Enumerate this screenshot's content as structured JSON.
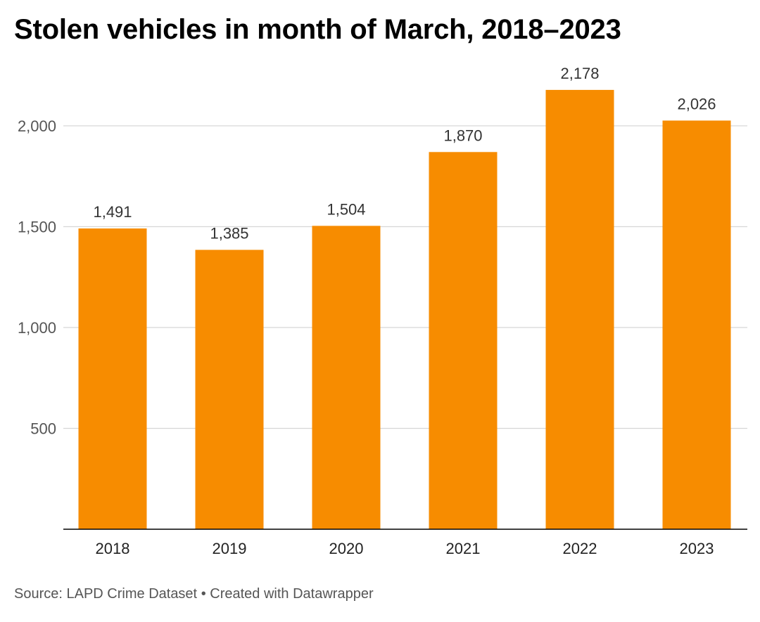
{
  "header": {
    "title": "Stolen vehicles in month of March, 2018–2023"
  },
  "footer": {
    "source_label": "Source:",
    "source_name": "LAPD Crime Dataset",
    "separator": "•",
    "credit": "Created with Datawrapper"
  },
  "colors": {
    "bar": "#f78c00",
    "grid": "#d6d6d6",
    "baseline": "#000000"
  },
  "chart_data": {
    "type": "bar",
    "title": "Stolen vehicles in month of March, 2018–2023",
    "xlabel": "",
    "ylabel": "",
    "categories": [
      "2018",
      "2019",
      "2020",
      "2021",
      "2022",
      "2023"
    ],
    "values": [
      1491,
      1385,
      1504,
      1870,
      2178,
      2026
    ],
    "value_labels": [
      "1,491",
      "1,385",
      "1,504",
      "1,870",
      "2,178",
      "2,026"
    ],
    "yticks": [
      500,
      1000,
      1500,
      2000
    ],
    "ytick_labels": [
      "500",
      "1,000",
      "1,500",
      "2,000"
    ],
    "ylim": [
      0,
      2000
    ],
    "grid": true,
    "legend": false
  }
}
